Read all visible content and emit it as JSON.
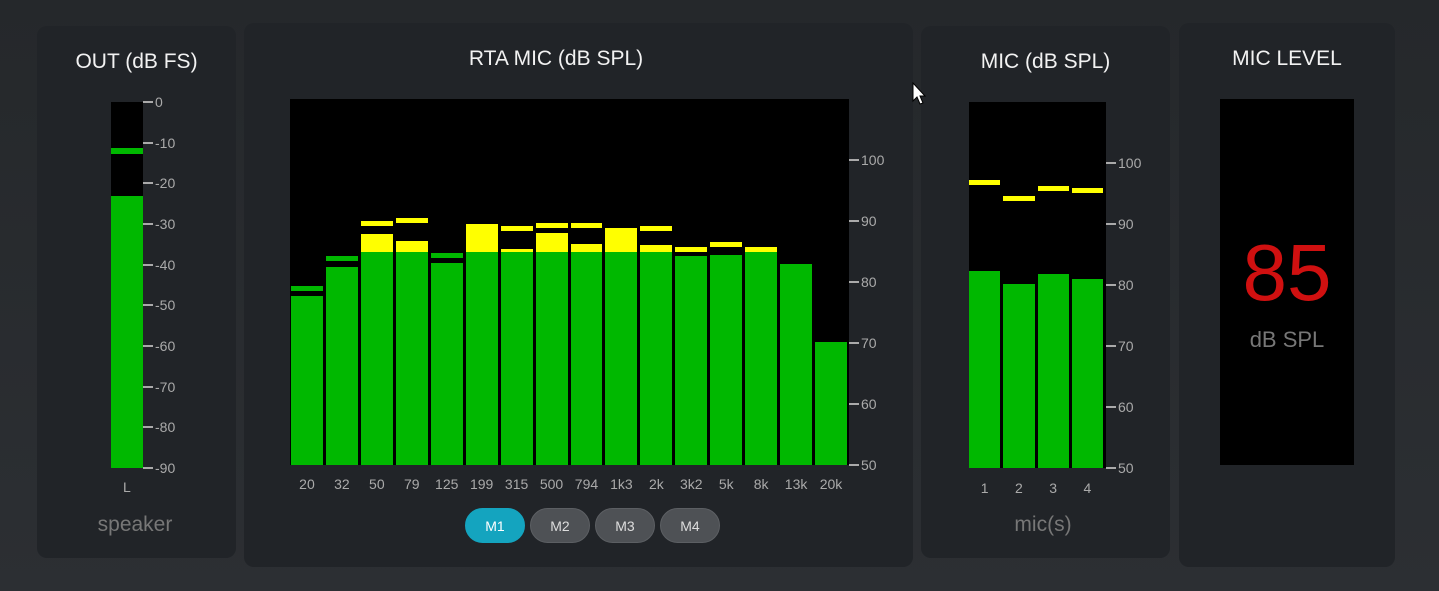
{
  "colors": {
    "level": "#00b800",
    "over": "#ffff00",
    "active_button": "#14a4bf",
    "readout": "#d01010"
  },
  "out": {
    "title": "OUT (dB FS)",
    "ticks": [
      "0",
      "-10",
      "-20",
      "-30",
      "-40",
      "-50",
      "-60",
      "-70",
      "-80",
      "-90"
    ],
    "channel": "L",
    "footer": "speaker",
    "level_db": -23,
    "peak_db": -12
  },
  "rta": {
    "title": "RTA MIC (dB SPL)",
    "ticks": [
      "100",
      "90",
      "80",
      "70",
      "60",
      "50"
    ],
    "bands": [
      "20",
      "32",
      "50",
      "79",
      "125",
      "199",
      "315",
      "500",
      "794",
      "1k3",
      "2k",
      "3k2",
      "5k",
      "8k",
      "13k",
      "20k"
    ],
    "levels": [
      77.7,
      82.5,
      87.8,
      86.8,
      83.1,
      89.5,
      85.4,
      88.1,
      86.2,
      88.8,
      86.0,
      84.2,
      84.4,
      85.7,
      82.9,
      70.2
    ],
    "peaks": [
      79,
      84,
      89.6,
      90.1,
      84.4,
      null,
      88.8,
      89.4,
      89.4,
      null,
      88.8,
      85.4,
      86.3,
      null,
      null,
      null
    ],
    "yellow_threshold": 85,
    "buttons": [
      {
        "label": "M1",
        "active": true
      },
      {
        "label": "M2",
        "active": false
      },
      {
        "label": "M3",
        "active": false
      },
      {
        "label": "M4",
        "active": false
      }
    ]
  },
  "mic": {
    "title": "MIC (dB SPL)",
    "ticks": [
      "100",
      "90",
      "80",
      "70",
      "60",
      "50"
    ],
    "channels": [
      "1",
      "2",
      "3",
      "4"
    ],
    "levels": [
      82.3,
      80.2,
      81.8,
      81.0
    ],
    "peaks": [
      96.9,
      94.2,
      95.9,
      95.5
    ],
    "footer": "mic(s)"
  },
  "mic_level": {
    "title": "MIC LEVEL",
    "value": "85",
    "unit": "dB SPL"
  }
}
